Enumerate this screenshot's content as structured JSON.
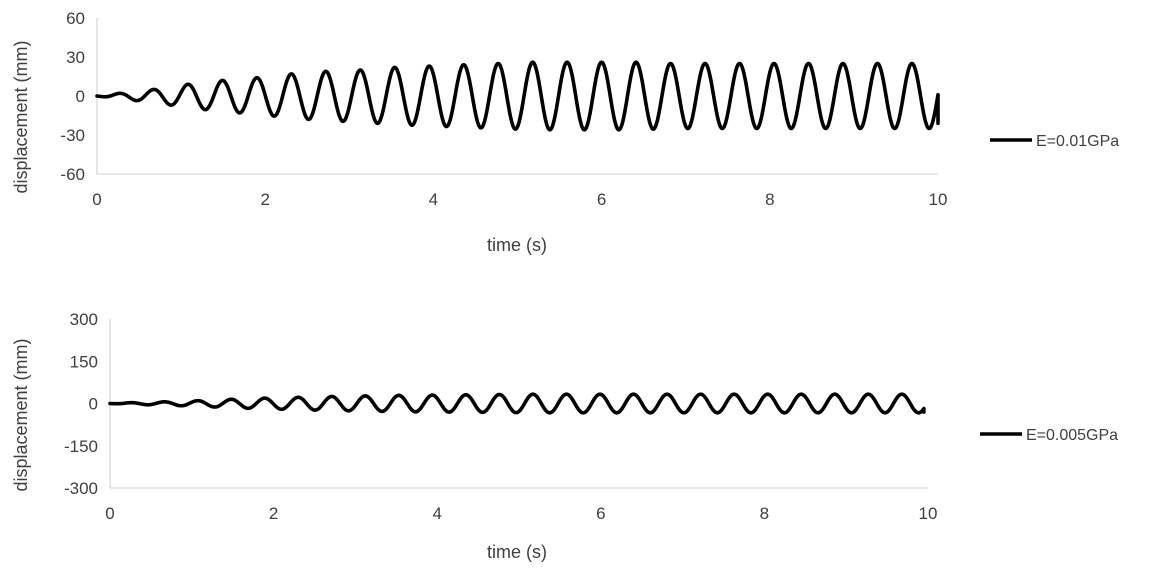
{
  "chart_data": [
    {
      "type": "line",
      "xlabel": "time (s)",
      "ylabel": "displacement (mm)",
      "xlim": [
        0,
        10
      ],
      "ylim": [
        -60,
        60
      ],
      "x_ticks": [
        0,
        2,
        4,
        6,
        8,
        10
      ],
      "x_tick_labels": [
        "0",
        "2",
        "4",
        "6",
        "8",
        "10"
      ],
      "y_ticks": [
        60,
        30,
        0,
        -30,
        -60
      ],
      "y_tick_labels": [
        "60",
        "30",
        "0",
        "-30",
        "-60"
      ],
      "grid": false,
      "legend": "right",
      "series": [
        {
          "name": "E=0.01GPa",
          "color": "#000000",
          "x_range": [
            0,
            10
          ],
          "period_s": 0.41,
          "peaks": [
            {
              "t": 0.26,
              "y": 2
            },
            {
              "t": 0.67,
              "y": 5
            },
            {
              "t": 1.08,
              "y": 9
            },
            {
              "t": 1.49,
              "y": 12
            },
            {
              "t": 1.9,
              "y": 14
            },
            {
              "t": 2.31,
              "y": 17
            },
            {
              "t": 2.72,
              "y": 19
            },
            {
              "t": 3.13,
              "y": 20
            },
            {
              "t": 3.54,
              "y": 22
            },
            {
              "t": 3.95,
              "y": 23
            },
            {
              "t": 4.36,
              "y": 24
            },
            {
              "t": 4.77,
              "y": 25
            },
            {
              "t": 5.18,
              "y": 26
            },
            {
              "t": 5.59,
              "y": 26
            },
            {
              "t": 6.0,
              "y": 26
            },
            {
              "t": 6.41,
              "y": 26
            },
            {
              "t": 6.82,
              "y": 25
            },
            {
              "t": 7.23,
              "y": 25
            },
            {
              "t": 7.64,
              "y": 25
            },
            {
              "t": 8.05,
              "y": 25
            },
            {
              "t": 8.46,
              "y": 25
            },
            {
              "t": 8.87,
              "y": 25
            },
            {
              "t": 9.28,
              "y": 25
            },
            {
              "t": 9.69,
              "y": 25
            }
          ],
          "end_value": -21
        }
      ]
    },
    {
      "type": "line",
      "xlabel": "time (s)",
      "ylabel": "displacement (mm)",
      "xlim": [
        0,
        10
      ],
      "ylim": [
        -300,
        300
      ],
      "x_ticks": [
        0,
        2,
        4,
        6,
        8,
        10
      ],
      "x_tick_labels": [
        "0",
        "2",
        "4",
        "6",
        "8",
        "10"
      ],
      "y_ticks": [
        300,
        150,
        0,
        -150,
        -300
      ],
      "y_tick_labels": [
        "300",
        "150",
        "0",
        "-150",
        "-300"
      ],
      "grid": false,
      "legend": "right",
      "series": [
        {
          "name": "E=0.005GPa",
          "color": "#000000",
          "x_range": [
            0,
            9.95
          ],
          "period_s": 0.41,
          "peaks": [
            {
              "t": 0.25,
              "y": 3
            },
            {
              "t": 0.66,
              "y": 6
            },
            {
              "t": 1.07,
              "y": 10
            },
            {
              "t": 1.48,
              "y": 15
            },
            {
              "t": 1.89,
              "y": 19
            },
            {
              "t": 2.3,
              "y": 22
            },
            {
              "t": 2.71,
              "y": 25
            },
            {
              "t": 3.12,
              "y": 27
            },
            {
              "t": 3.53,
              "y": 29
            },
            {
              "t": 3.94,
              "y": 30
            },
            {
              "t": 4.35,
              "y": 31
            },
            {
              "t": 4.76,
              "y": 32
            },
            {
              "t": 5.17,
              "y": 33
            },
            {
              "t": 5.58,
              "y": 33
            },
            {
              "t": 5.99,
              "y": 33
            },
            {
              "t": 6.4,
              "y": 33
            },
            {
              "t": 6.81,
              "y": 33
            },
            {
              "t": 7.22,
              "y": 33
            },
            {
              "t": 7.63,
              "y": 33
            },
            {
              "t": 8.04,
              "y": 33
            },
            {
              "t": 8.45,
              "y": 33
            },
            {
              "t": 8.86,
              "y": 33
            },
            {
              "t": 9.27,
              "y": 33
            },
            {
              "t": 9.68,
              "y": 33
            }
          ],
          "end_value": -30
        }
      ]
    }
  ]
}
